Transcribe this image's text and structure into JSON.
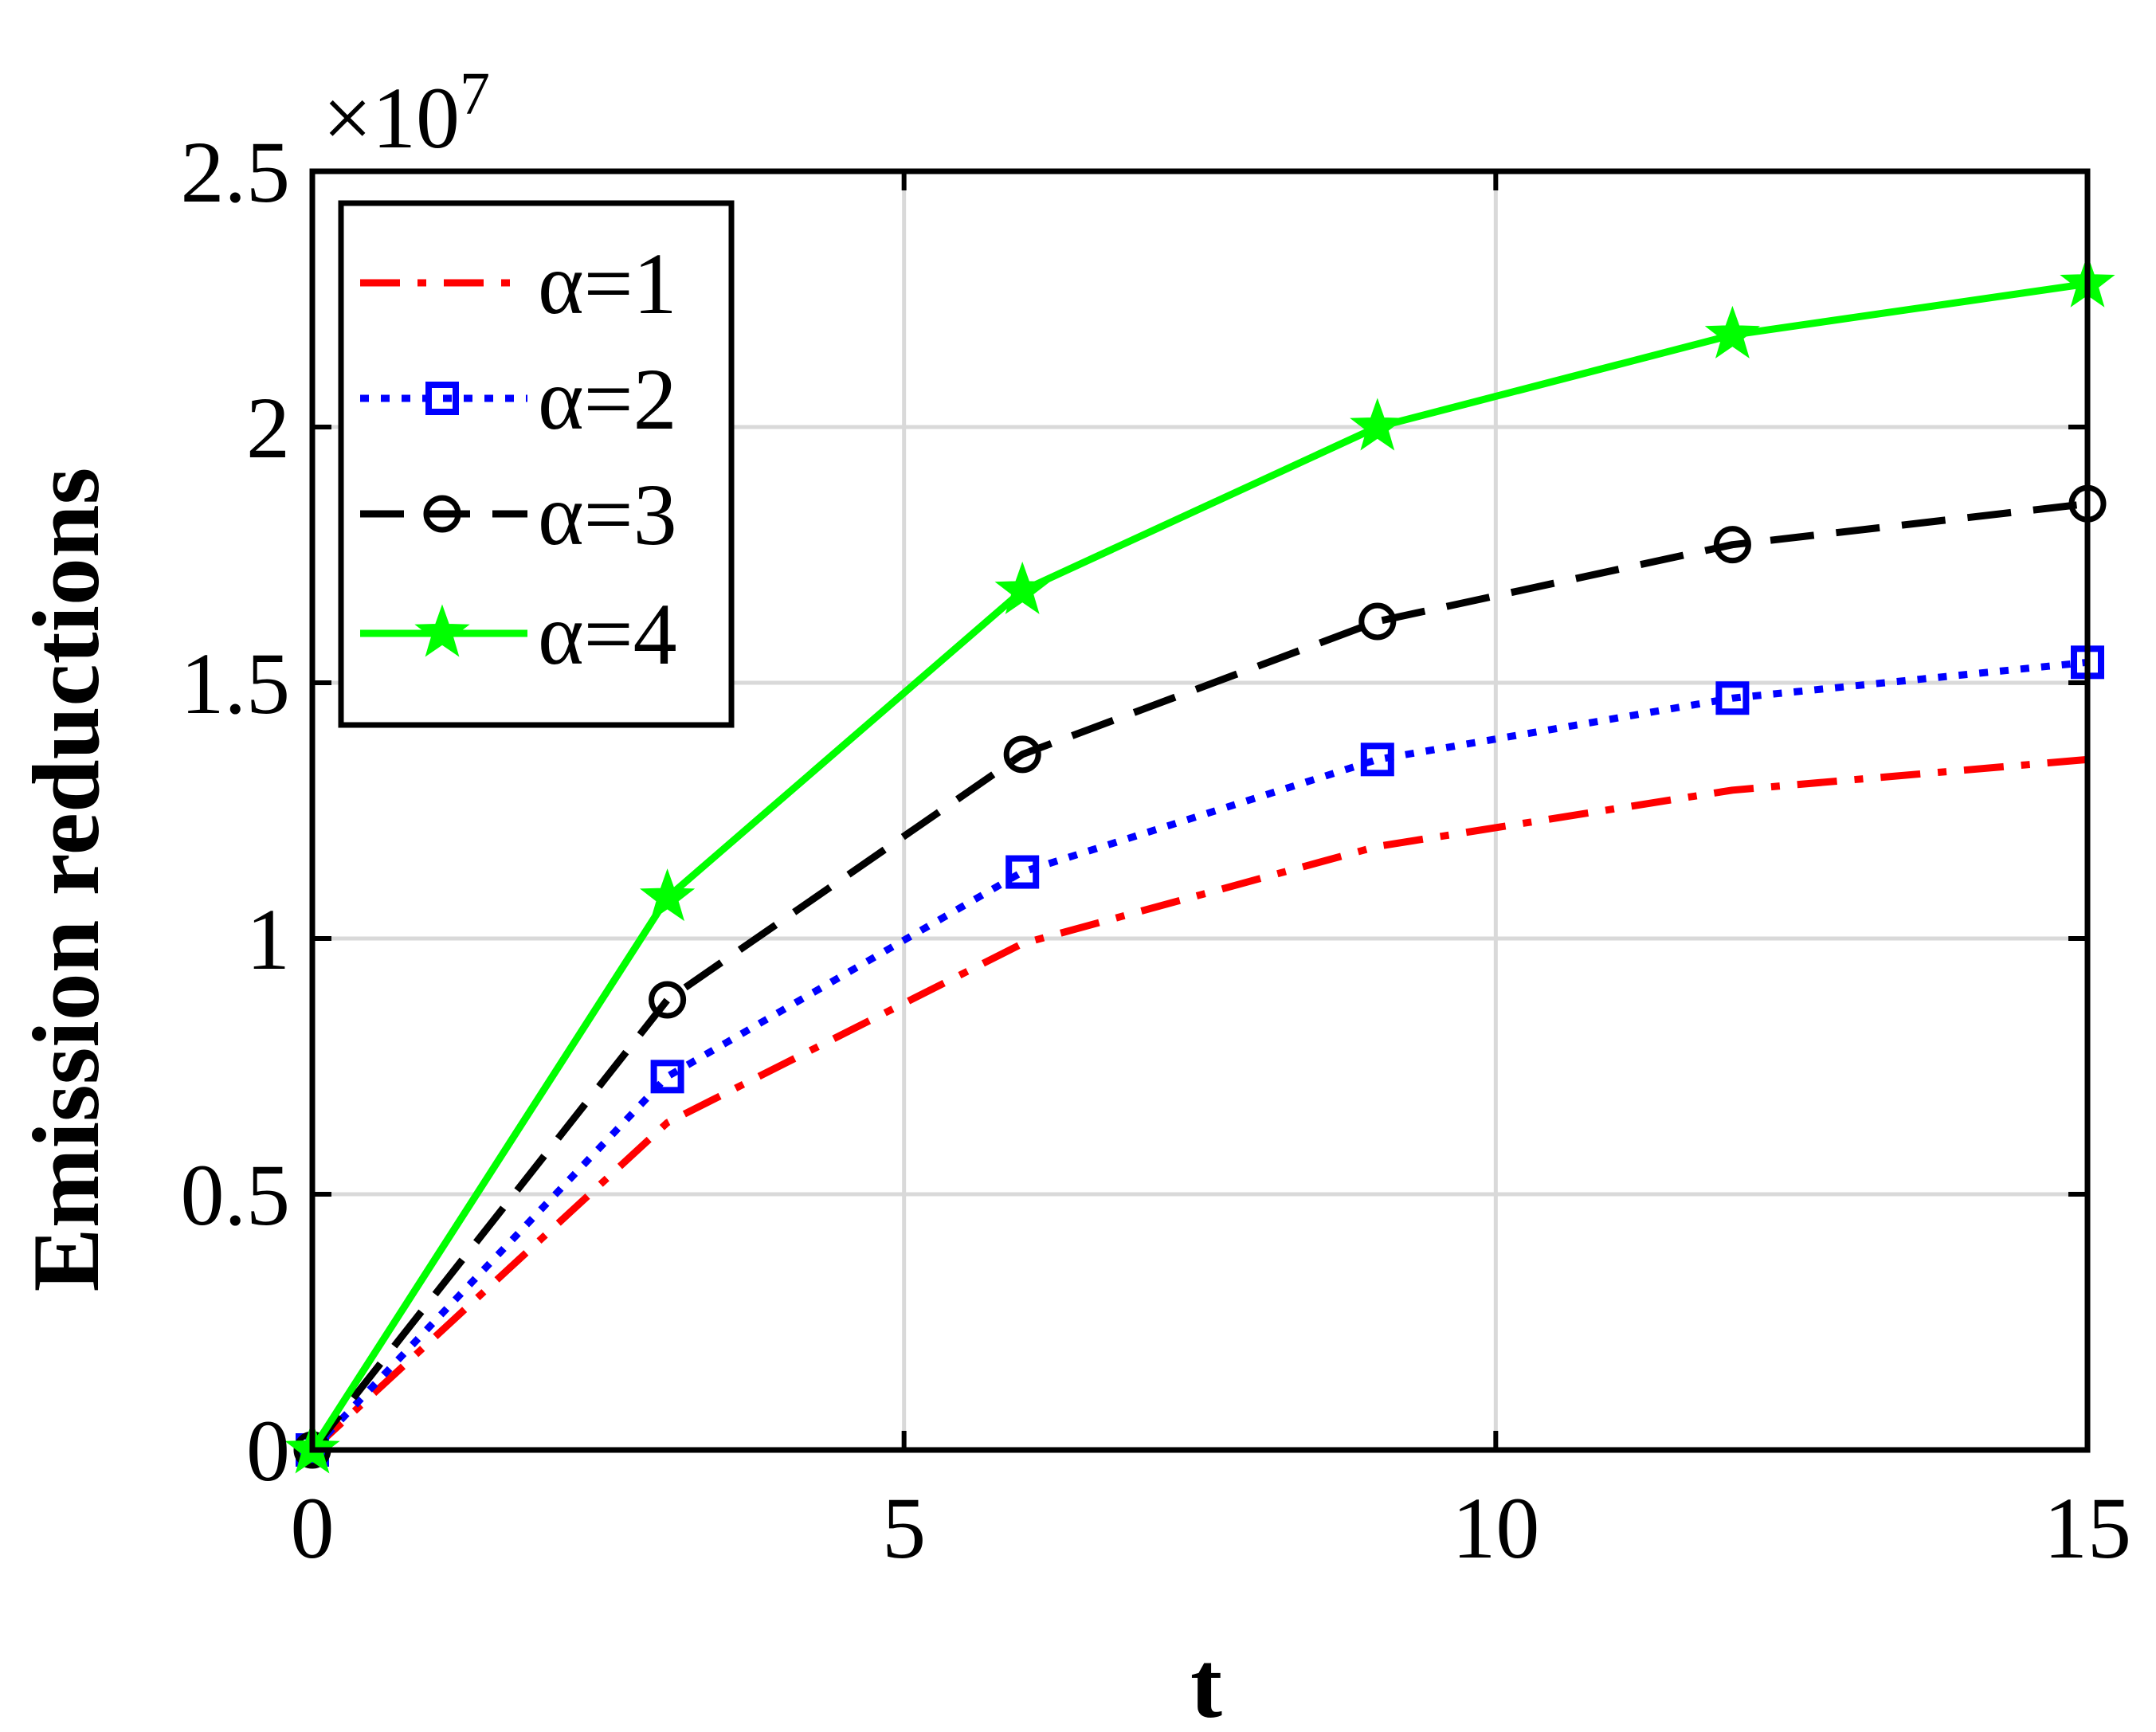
{
  "chart_data": {
    "type": "line",
    "title": "",
    "xlabel": "t",
    "ylabel": "Emission reductions",
    "xlim": [
      0,
      15
    ],
    "ylim": [
      0,
      25000000
    ],
    "x_ticks": [
      "0",
      "5",
      "10",
      "15"
    ],
    "y_ticks": [
      "0",
      "0.5",
      "1",
      "1.5",
      "2",
      "2.5"
    ],
    "y_exponent_base": "×10",
    "y_exponent_power": "7",
    "grid": true,
    "legend_position": "top-left",
    "x": [
      0,
      3,
      6,
      9,
      12,
      15
    ],
    "series": [
      {
        "name": "α=1",
        "values": [
          0,
          6400000,
          9900000,
          11800000,
          12900000,
          13500000
        ],
        "color": "#ff0000",
        "line_style": "dash-dot",
        "marker": "none"
      },
      {
        "name": "α=2",
        "values": [
          0,
          7300000,
          11300000,
          13500000,
          14700000,
          15400000
        ],
        "color": "#0000ff",
        "line_style": "dotted",
        "marker": "square"
      },
      {
        "name": "α=3",
        "values": [
          0,
          8800000,
          13600000,
          16200000,
          17700000,
          18500000
        ],
        "color": "#000000",
        "line_style": "dashed",
        "marker": "circle"
      },
      {
        "name": "α=4",
        "values": [
          0,
          10800000,
          16800000,
          20000000,
          21800000,
          22800000
        ],
        "color": "#00ff00",
        "line_style": "solid",
        "marker": "star"
      }
    ]
  }
}
